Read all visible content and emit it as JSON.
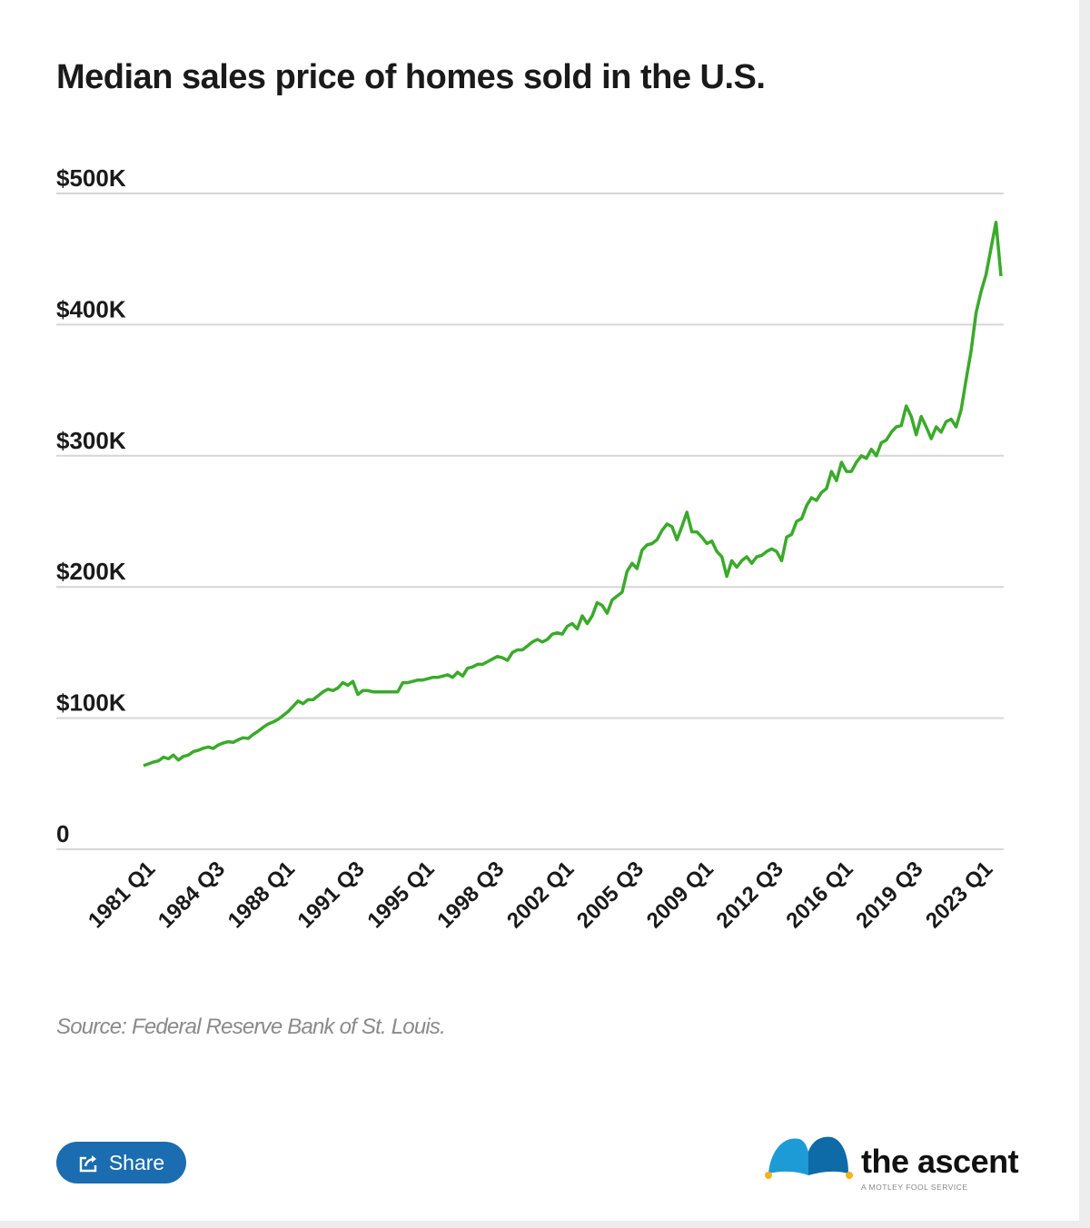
{
  "chart_data": {
    "type": "line",
    "title": "Median sales price of homes sold in the U.S.",
    "xlabel": "",
    "ylabel": "",
    "x_start": "1981 Q1",
    "x_frequency": "quarterly",
    "x_ticks": [
      "1981 Q1",
      "1984 Q3",
      "1988 Q1",
      "1991 Q3",
      "1995 Q1",
      "1998 Q3",
      "2002 Q1",
      "2005 Q3",
      "2009 Q1",
      "2012 Q3",
      "2016 Q1",
      "2019 Q3",
      "2023 Q1"
    ],
    "y_ticks": [
      0,
      100,
      200,
      300,
      400,
      500
    ],
    "y_tick_labels": [
      "0",
      "$100K",
      "$200K",
      "$300K",
      "$400K",
      "$500K"
    ],
    "ylim": [
      0,
      500
    ],
    "y_unit": "thousands USD",
    "grid": "horizontal",
    "line_color": "#3aaa2a",
    "series": [
      {
        "values": [
          63.7,
          65.1,
          66.5,
          67.4,
          70.2,
          69.0,
          71.8,
          68.0,
          70.8,
          71.8,
          74.5,
          75.5,
          77.0,
          78.0,
          76.8,
          79.5,
          81.0,
          82.0,
          81.5,
          83.5,
          85.0,
          84.5,
          87.5,
          90.0,
          93.0,
          95.5,
          97.0,
          99.0,
          102,
          105,
          109,
          113,
          111,
          114,
          114,
          117,
          120,
          122,
          121,
          123,
          127,
          125,
          128,
          118,
          121,
          121,
          120,
          120,
          120,
          120,
          120,
          120,
          127,
          127,
          128,
          129,
          129,
          130,
          131,
          131,
          132,
          133,
          131,
          135,
          132,
          138,
          139,
          141,
          141,
          143,
          145,
          147,
          146,
          144,
          150,
          152,
          152,
          155,
          158,
          160,
          158,
          160,
          164,
          165,
          164,
          170,
          172,
          168,
          178,
          172,
          178,
          188,
          186,
          180,
          190,
          193,
          196,
          212,
          218,
          214,
          228,
          232,
          233,
          236,
          243,
          248,
          246,
          236,
          246,
          257,
          242,
          242,
          238,
          233,
          235,
          227,
          223,
          208,
          220,
          215,
          220,
          223,
          218,
          223,
          224,
          227,
          229,
          227,
          220,
          238,
          240,
          250,
          252,
          262,
          268,
          266,
          272,
          275,
          288,
          281,
          295,
          288,
          288,
          295,
          300,
          298,
          305,
          300,
          310,
          312,
          318,
          322,
          323,
          338,
          330,
          316,
          330,
          322,
          313,
          322,
          318,
          326,
          328,
          322,
          335,
          358,
          380,
          409,
          425,
          438,
          458,
          478,
          437
        ]
      }
    ],
    "source": "Source: Federal Reserve Bank of St. Louis."
  },
  "share_label": "Share",
  "logo": {
    "name": "the ascent",
    "tagline": "A MOTLEY FOOL SERVICE"
  },
  "colors": {
    "share_button": "#1b6cb0",
    "logo_blue_light": "#1d9bd6",
    "logo_blue_dark": "#0f6aa8",
    "logo_dot": "#f9b21b"
  }
}
